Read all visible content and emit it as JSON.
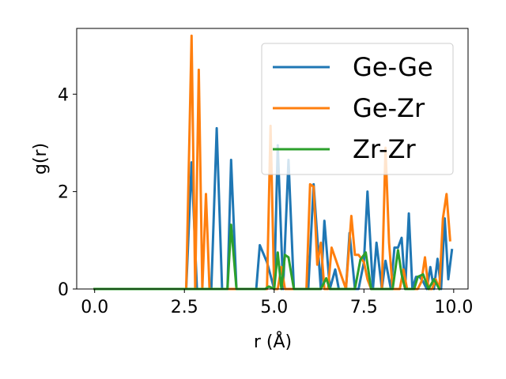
{
  "chart_data": {
    "type": "line",
    "xlabel": "r (Å)",
    "ylabel": "g(r)",
    "xlim": [
      -0.5,
      10.4
    ],
    "ylim": [
      0,
      5.35
    ],
    "xticks": [
      0.0,
      2.5,
      5.0,
      7.5,
      10.0
    ],
    "xtick_labels": [
      "0.0",
      "2.5",
      "5.0",
      "7.5",
      "10.0"
    ],
    "yticks": [
      0,
      2,
      4
    ],
    "ytick_labels": [
      "0",
      "2",
      "4"
    ],
    "grid": false,
    "legend_position": "top-right",
    "series": [
      {
        "name": "Ge-Ge",
        "color": "#1f77b4",
        "x": [
          0.0,
          2.5,
          2.55,
          2.7,
          2.85,
          3.25,
          3.4,
          3.55,
          3.7,
          3.8,
          3.95,
          4.5,
          4.6,
          4.8,
          5.0,
          5.1,
          5.25,
          5.4,
          5.55,
          5.7,
          5.8,
          5.95,
          6.1,
          6.3,
          6.4,
          6.55,
          6.7,
          6.8,
          7.0,
          7.1,
          7.25,
          7.35,
          7.5,
          7.6,
          7.75,
          7.85,
          8.0,
          8.1,
          8.25,
          8.35,
          8.45,
          8.55,
          8.65,
          8.75,
          8.85,
          8.95,
          9.05,
          9.15,
          9.25,
          9.35,
          9.45,
          9.55,
          9.65,
          9.75,
          9.85,
          9.95
        ],
        "y": [
          0,
          0,
          0,
          2.6,
          0,
          0,
          3.3,
          0,
          0,
          2.65,
          0,
          0,
          0.9,
          0.55,
          0,
          2.95,
          0,
          2.65,
          0,
          0,
          0,
          0,
          2.15,
          0,
          1.4,
          0,
          0.4,
          0,
          0,
          1.15,
          0,
          0,
          0.55,
          2.0,
          0,
          0.95,
          0,
          0.58,
          0,
          0.85,
          0.85,
          1.05,
          0,
          1.55,
          0,
          0.25,
          0.25,
          0.15,
          0,
          0.45,
          0,
          0.62,
          0,
          1.45,
          0.2,
          0.8
        ]
      },
      {
        "name": "Ge-Zr",
        "color": "#ff7f0e",
        "x": [
          0.0,
          2.55,
          2.7,
          2.8,
          2.9,
          3.0,
          3.1,
          3.2,
          4.8,
          4.9,
          5.0,
          5.1,
          5.2,
          5.3,
          5.4,
          5.5,
          5.9,
          6.0,
          6.1,
          6.2,
          6.3,
          6.4,
          6.5,
          6.6,
          7.0,
          7.15,
          7.25,
          7.35,
          7.5,
          7.6,
          7.7,
          7.8,
          8.0,
          8.1,
          8.2,
          8.3,
          8.5,
          8.6,
          8.7,
          8.8,
          9.0,
          9.1,
          9.2,
          9.3,
          9.4,
          9.5,
          9.6,
          9.7,
          9.8,
          9.9
        ],
        "y": [
          0,
          0,
          5.2,
          0,
          4.5,
          0,
          1.95,
          0,
          0,
          3.35,
          0,
          0,
          0.45,
          0,
          0,
          0,
          0,
          2.15,
          2.1,
          0.5,
          0.95,
          0,
          0,
          0.85,
          0,
          1.5,
          0.7,
          0.7,
          0.55,
          0.2,
          0,
          0,
          0,
          2.9,
          0.95,
          0,
          0,
          0.4,
          0,
          0,
          0,
          0.15,
          0.65,
          0,
          0,
          0.2,
          0,
          1.45,
          1.95,
          1.0
        ]
      },
      {
        "name": "Zr-Zr",
        "color": "#2ca02c",
        "x": [
          0.0,
          3.55,
          3.7,
          3.8,
          3.95,
          4.75,
          4.85,
          5.0,
          5.1,
          5.2,
          5.3,
          5.4,
          5.55,
          6.3,
          6.45,
          6.55,
          7.25,
          7.4,
          7.55,
          7.7,
          8.3,
          8.45,
          8.55,
          8.65,
          8.9,
          9.0,
          9.15,
          9.3,
          9.45,
          9.6
        ],
        "y": [
          0,
          0,
          0,
          1.32,
          0,
          0,
          0.05,
          0,
          0.75,
          0,
          0.7,
          0.65,
          0,
          0,
          0.22,
          0,
          0,
          0.6,
          0.75,
          0,
          0,
          0.8,
          0.3,
          0,
          0,
          0.25,
          0.3,
          0,
          0.2,
          0
        ]
      }
    ]
  }
}
